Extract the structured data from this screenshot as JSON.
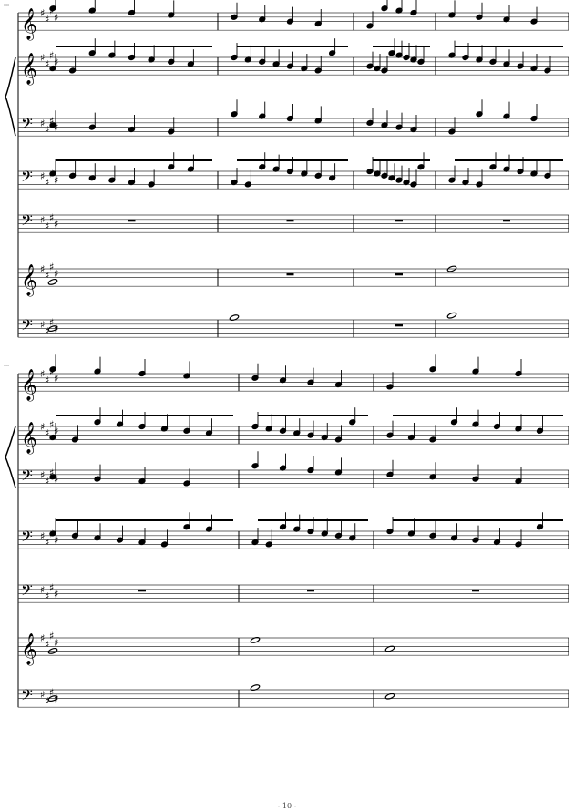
{
  "page": {
    "number_label": "- 10 -"
  },
  "systems": [
    {
      "marker": ":::",
      "staves": [
        "treble",
        "treble",
        "bass",
        "bass",
        "bass",
        "treble",
        "bass"
      ],
      "key_signature": "E major (4 sharps)",
      "brace_staves": [
        1,
        2
      ]
    },
    {
      "marker": ":::",
      "staves": [
        "treble",
        "treble",
        "bass",
        "bass",
        "bass",
        "treble",
        "bass"
      ],
      "key_signature": "E major (4 sharps)",
      "brace_staves": [
        1,
        2
      ]
    }
  ],
  "colors": {
    "ink": "#000000",
    "staff_line": "#333333"
  }
}
